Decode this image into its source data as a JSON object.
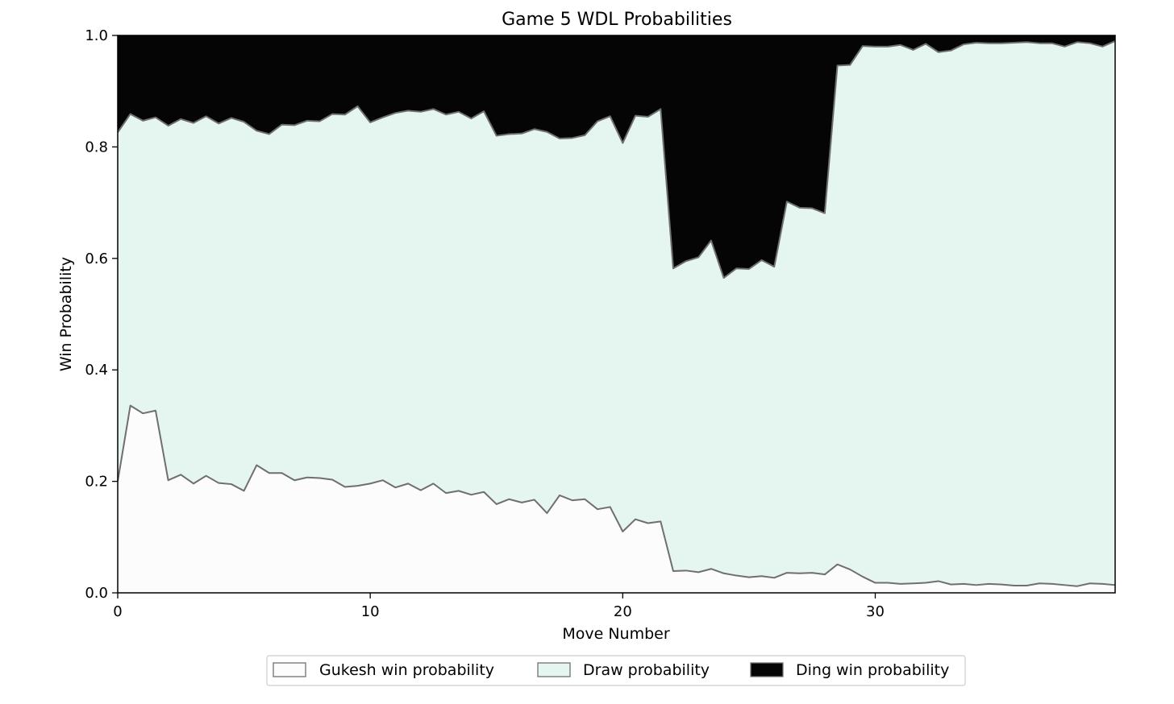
{
  "chart_data": {
    "type": "area",
    "title": "Game 5 WDL Probabilities",
    "xlabel": "Move Number",
    "ylabel": "Win Probability",
    "xlim": [
      0,
      39.5
    ],
    "ylim": [
      0,
      1.0
    ],
    "xticks": [
      "0",
      "10",
      "20",
      "30"
    ],
    "xtick_values": [
      0,
      10,
      20,
      30
    ],
    "yticks": [
      "0.0",
      "0.2",
      "0.4",
      "0.6",
      "0.8",
      "1.0"
    ],
    "ytick_values": [
      0,
      0.2,
      0.4,
      0.6,
      0.8,
      1.0
    ],
    "stacked": true,
    "legend_position": "bottom-center",
    "x": [
      0,
      0.5,
      1,
      1.5,
      2,
      2.5,
      3,
      3.5,
      4,
      4.5,
      5,
      5.5,
      6,
      6.5,
      7,
      7.5,
      8,
      8.5,
      9,
      9.5,
      10,
      10.5,
      11,
      11.5,
      12,
      12.5,
      13,
      13.5,
      14,
      14.5,
      15,
      15.5,
      16,
      16.5,
      17,
      17.5,
      18,
      18.5,
      19,
      19.5,
      20,
      20.5,
      21,
      21.5,
      22,
      22.5,
      23,
      23.5,
      24,
      24.5,
      25,
      25.5,
      26,
      26.5,
      27,
      27.5,
      28,
      28.5,
      29,
      29.5,
      30,
      30.5,
      31,
      31.5,
      32,
      32.5,
      33,
      33.5,
      34,
      34.5,
      35,
      35.5,
      36,
      36.5,
      37,
      37.5,
      38,
      38.5,
      39,
      39.5
    ],
    "series": [
      {
        "name": "Gukesh win probability",
        "color": "#fcfcfc",
        "values": [
          0.2,
          0.336,
          0.322,
          0.327,
          0.202,
          0.212,
          0.196,
          0.21,
          0.197,
          0.195,
          0.183,
          0.229,
          0.215,
          0.215,
          0.202,
          0.207,
          0.206,
          0.203,
          0.19,
          0.192,
          0.196,
          0.202,
          0.189,
          0.196,
          0.184,
          0.196,
          0.179,
          0.183,
          0.176,
          0.181,
          0.159,
          0.168,
          0.162,
          0.167,
          0.143,
          0.175,
          0.166,
          0.168,
          0.15,
          0.154,
          0.11,
          0.132,
          0.125,
          0.128,
          0.039,
          0.04,
          0.037,
          0.043,
          0.035,
          0.031,
          0.028,
          0.03,
          0.027,
          0.036,
          0.035,
          0.036,
          0.033,
          0.051,
          0.042,
          0.029,
          0.018,
          0.018,
          0.016,
          0.017,
          0.018,
          0.021,
          0.015,
          0.016,
          0.014,
          0.016,
          0.015,
          0.013,
          0.013,
          0.017,
          0.016,
          0.014,
          0.012,
          0.017,
          0.016,
          0.014
        ]
      },
      {
        "name": "Draw probability",
        "color": "#e5f5ef",
        "values": [
          0.626,
          0.523,
          0.525,
          0.526,
          0.636,
          0.638,
          0.647,
          0.645,
          0.645,
          0.657,
          0.662,
          0.6,
          0.608,
          0.625,
          0.637,
          0.64,
          0.64,
          0.656,
          0.668,
          0.681,
          0.648,
          0.651,
          0.672,
          0.669,
          0.679,
          0.672,
          0.679,
          0.68,
          0.675,
          0.683,
          0.661,
          0.655,
          0.662,
          0.665,
          0.684,
          0.64,
          0.65,
          0.653,
          0.696,
          0.701,
          0.697,
          0.724,
          0.729,
          0.74,
          0.543,
          0.555,
          0.565,
          0.589,
          0.53,
          0.551,
          0.553,
          0.567,
          0.558,
          0.666,
          0.656,
          0.654,
          0.648,
          0.895,
          0.905,
          0.952,
          0.962,
          0.962,
          0.967,
          0.957,
          0.967,
          0.949,
          0.958,
          0.968,
          0.973,
          0.97,
          0.971,
          0.974,
          0.975,
          0.969,
          0.97,
          0.966,
          0.976,
          0.969,
          0.964,
          0.976
        ]
      },
      {
        "name": "Ding win probability",
        "color": "#050505",
        "values": [
          0.174,
          0.141,
          0.153,
          0.147,
          0.162,
          0.15,
          0.157,
          0.145,
          0.158,
          0.148,
          0.155,
          0.171,
          0.177,
          0.16,
          0.161,
          0.153,
          0.154,
          0.141,
          0.142,
          0.127,
          0.156,
          0.147,
          0.139,
          0.135,
          0.137,
          0.132,
          0.142,
          0.137,
          0.149,
          0.136,
          0.18,
          0.177,
          0.176,
          0.168,
          0.173,
          0.185,
          0.184,
          0.179,
          0.154,
          0.145,
          0.193,
          0.144,
          0.146,
          0.132,
          0.418,
          0.405,
          0.398,
          0.368,
          0.435,
          0.418,
          0.419,
          0.403,
          0.415,
          0.298,
          0.309,
          0.31,
          0.319,
          0.054,
          0.053,
          0.019,
          0.02,
          0.02,
          0.017,
          0.026,
          0.015,
          0.03,
          0.027,
          0.016,
          0.013,
          0.014,
          0.014,
          0.013,
          0.012,
          0.014,
          0.014,
          0.02,
          0.012,
          0.014,
          0.02,
          0.01
        ]
      }
    ]
  }
}
